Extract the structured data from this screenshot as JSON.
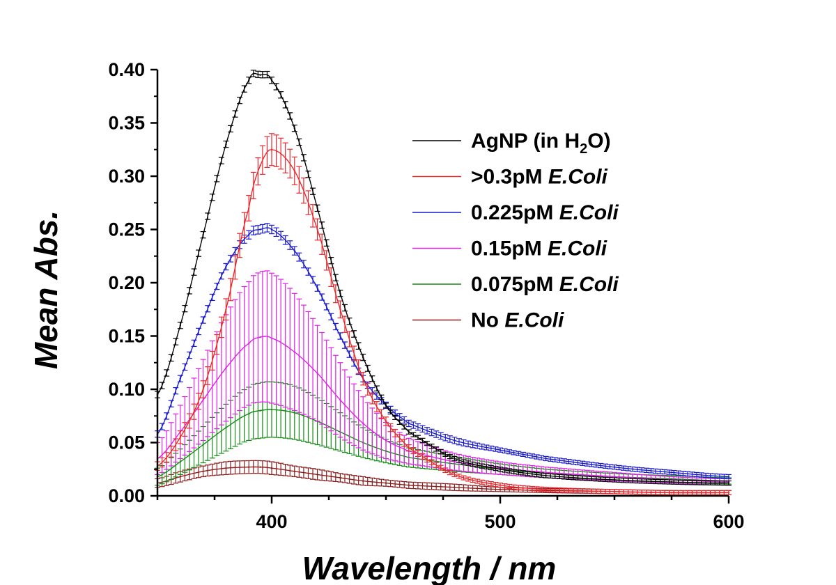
{
  "chart_data": {
    "type": "line",
    "xlabel": "Wavelength / nm",
    "ylabel": "Mean Abs.",
    "xlim": [
      350,
      600
    ],
    "ylim": [
      0.0,
      0.4
    ],
    "x_ticks": [
      400,
      500,
      600
    ],
    "x_tick_labels": [
      "400",
      "500",
      "600"
    ],
    "y_ticks": [
      0.0,
      0.05,
      0.1,
      0.15,
      0.2,
      0.25,
      0.3,
      0.35,
      0.4
    ],
    "y_tick_labels": [
      "0.00",
      "0.05",
      "0.10",
      "0.15",
      "0.20",
      "0.25",
      "0.30",
      "0.35",
      "0.40"
    ],
    "grid": false,
    "legend_position": "top-right",
    "error_bars": true,
    "x": [
      350,
      360,
      370,
      380,
      390,
      395,
      400,
      410,
      420,
      430,
      440,
      450,
      460,
      480,
      500,
      520,
      550,
      575,
      600
    ],
    "series": [
      {
        "name": "AgNP (in H2O)",
        "label_main": "AgNP (in H",
        "label_sub": "2",
        "label_end": "O)",
        "label_italic": "",
        "color": "#000000",
        "values": [
          0.095,
          0.16,
          0.245,
          0.33,
          0.39,
          0.395,
          0.39,
          0.345,
          0.27,
          0.19,
          0.13,
          0.085,
          0.06,
          0.035,
          0.025,
          0.019,
          0.015,
          0.013,
          0.012
        ],
        "errors": [
          0.003,
          0.003,
          0.003,
          0.003,
          0.003,
          0.003,
          0.003,
          0.003,
          0.003,
          0.003,
          0.003,
          0.002,
          0.002,
          0.002,
          0.002,
          0.002,
          0.002,
          0.002,
          0.002
        ]
      },
      {
        "name": ">0.3pM E.Coli",
        "label_main": ">0.3pM ",
        "label_sub": "",
        "label_end": "",
        "label_italic": "E.Coli",
        "color": "#e8282d",
        "values": [
          0.028,
          0.055,
          0.1,
          0.175,
          0.27,
          0.31,
          0.325,
          0.305,
          0.25,
          0.175,
          0.11,
          0.07,
          0.045,
          0.02,
          0.01,
          0.006,
          0.004,
          0.003,
          0.003
        ],
        "errors": [
          0.004,
          0.006,
          0.008,
          0.01,
          0.012,
          0.013,
          0.015,
          0.013,
          0.01,
          0.008,
          0.006,
          0.004,
          0.003,
          0.002,
          0.002,
          0.002,
          0.002,
          0.002,
          0.002
        ]
      },
      {
        "name": "0.225pM E.Coli",
        "label_main": "0.225pM ",
        "label_sub": "",
        "label_end": "",
        "label_italic": "E.Coli",
        "color": "#1a1acd",
        "values": [
          0.058,
          0.11,
          0.165,
          0.215,
          0.245,
          0.25,
          0.25,
          0.23,
          0.195,
          0.15,
          0.11,
          0.085,
          0.068,
          0.052,
          0.043,
          0.035,
          0.027,
          0.022,
          0.018
        ],
        "errors": [
          0.003,
          0.003,
          0.003,
          0.003,
          0.004,
          0.004,
          0.004,
          0.004,
          0.003,
          0.003,
          0.003,
          0.003,
          0.003,
          0.003,
          0.002,
          0.002,
          0.002,
          0.002,
          0.002
        ]
      },
      {
        "name": "0.15pM E.Coli",
        "label_main": "0.15pM ",
        "label_sub": "",
        "label_end": "",
        "label_italic": "E.Coli",
        "color": "#e020e8",
        "values": [
          0.035,
          0.06,
          0.09,
          0.12,
          0.143,
          0.149,
          0.148,
          0.135,
          0.115,
          0.09,
          0.068,
          0.052,
          0.042,
          0.032,
          0.026,
          0.022,
          0.018,
          0.015,
          0.013
        ],
        "errors": [
          0.015,
          0.025,
          0.038,
          0.05,
          0.058,
          0.061,
          0.061,
          0.055,
          0.045,
          0.035,
          0.025,
          0.017,
          0.012,
          0.008,
          0.006,
          0.005,
          0.004,
          0.003,
          0.003
        ]
      },
      {
        "name": "0.075pM E.Coli",
        "label_main": "0.075pM ",
        "label_sub": "",
        "label_end": "",
        "label_italic": "E.Coli",
        "color": "#138a13",
        "values": [
          0.018,
          0.032,
          0.048,
          0.064,
          0.077,
          0.08,
          0.081,
          0.078,
          0.07,
          0.06,
          0.05,
          0.042,
          0.036,
          0.03,
          0.025,
          0.021,
          0.018,
          0.016,
          0.014
        ],
        "errors": [
          0.008,
          0.012,
          0.017,
          0.022,
          0.025,
          0.026,
          0.026,
          0.025,
          0.022,
          0.018,
          0.014,
          0.011,
          0.009,
          0.007,
          0.005,
          0.004,
          0.003,
          0.003,
          0.003
        ]
      },
      {
        "name": "No E.Coli",
        "label_main": "No ",
        "label_sub": "",
        "label_end": "",
        "label_italic": "E.Coli",
        "color": "#8b1d1d",
        "values": [
          0.012,
          0.018,
          0.023,
          0.026,
          0.027,
          0.027,
          0.026,
          0.023,
          0.02,
          0.017,
          0.014,
          0.012,
          0.01,
          0.008,
          0.006,
          0.005,
          0.004,
          0.003,
          0.003
        ],
        "errors": [
          0.004,
          0.005,
          0.005,
          0.006,
          0.006,
          0.006,
          0.006,
          0.005,
          0.005,
          0.004,
          0.004,
          0.003,
          0.003,
          0.003,
          0.002,
          0.002,
          0.002,
          0.002,
          0.002
        ]
      }
    ]
  }
}
